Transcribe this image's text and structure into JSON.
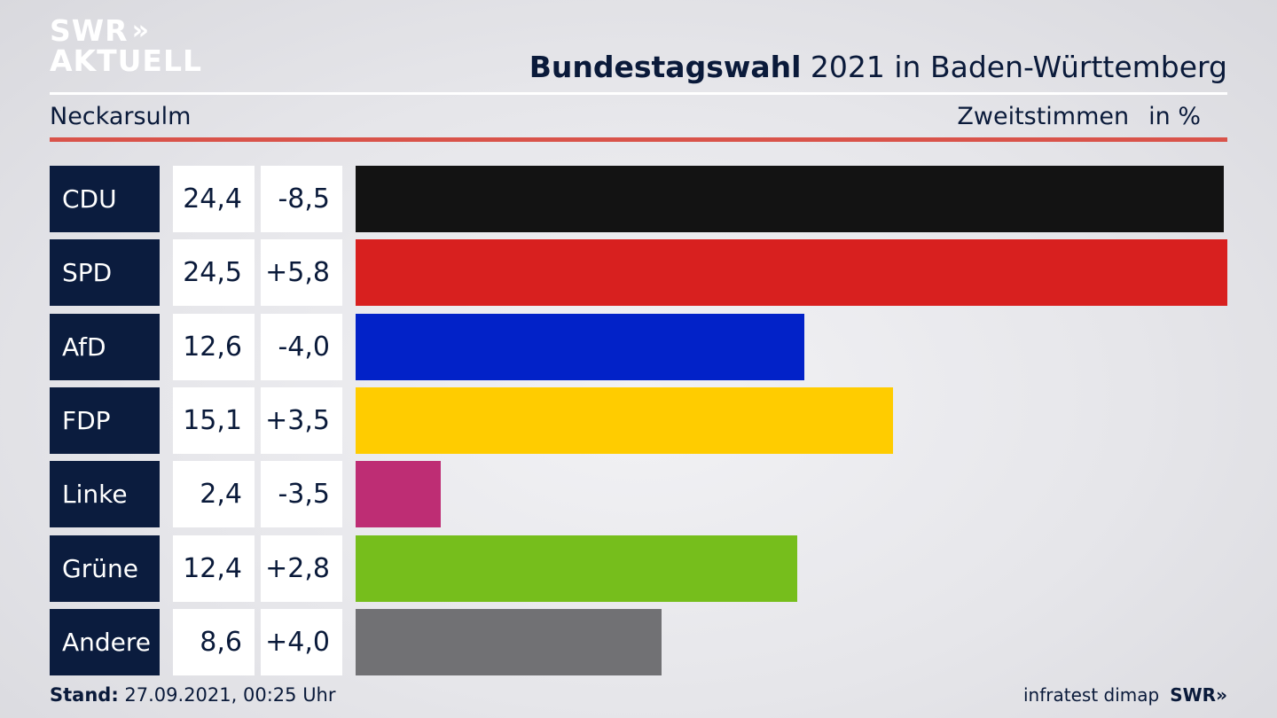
{
  "logo": {
    "line1": "SWR",
    "line1_mark": "»",
    "line2": "AKTUELL"
  },
  "header": {
    "title_bold": "Bundestagswahl",
    "title_rest": "2021 in Baden-Württemberg"
  },
  "subheader": {
    "location": "Neckarsulm",
    "measure": "Zweitstimmen",
    "unit": "in %"
  },
  "chart_data": {
    "type": "bar",
    "orientation": "horizontal",
    "title": "Bundestagswahl 2021 in Baden-Württemberg",
    "subtitle": "Neckarsulm",
    "categories": [
      "CDU",
      "SPD",
      "AfD",
      "FDP",
      "Linke",
      "Grüne",
      "Andere"
    ],
    "values": [
      24.4,
      24.5,
      12.6,
      15.1,
      2.4,
      12.4,
      8.6
    ],
    "labels": [
      "24,4",
      "24,5",
      "12,6",
      "15,1",
      "2,4",
      "12,4",
      "8,6"
    ],
    "diffs": [
      "-8,5",
      "+5,8",
      "-4,0",
      "+3,5",
      "-3,5",
      "+2,8",
      "+4,0"
    ],
    "colors": [
      "#131313",
      "#d8201f",
      "#0222c8",
      "#ffcc00",
      "#be2d74",
      "#76be1c",
      "#717174"
    ],
    "xlim": [
      0,
      24.5
    ]
  },
  "footer": {
    "stand_label": "Stand:",
    "stand_value": "27.09.2021, 00:25 Uhr",
    "source": "infratest dimap",
    "brand": "SWR",
    "brand_mark": "»"
  }
}
